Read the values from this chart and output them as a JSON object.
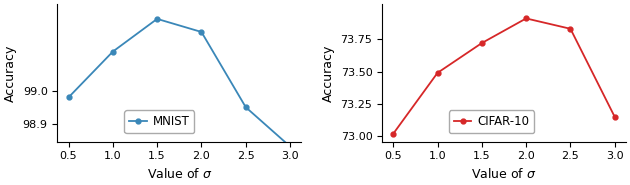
{
  "mnist": {
    "x": [
      0.5,
      1.0,
      1.5,
      2.0,
      2.5,
      3.0
    ],
    "y": [
      98.98,
      99.12,
      99.22,
      99.18,
      98.95,
      98.83
    ],
    "color": "#3a87b8",
    "label": "MNIST",
    "ylabel": "Accuracy",
    "ylim": [
      98.845,
      99.265
    ],
    "yticks": [
      98.9,
      99.0
    ]
  },
  "cifar": {
    "x": [
      0.5,
      1.0,
      1.5,
      2.0,
      2.5,
      3.0
    ],
    "y": [
      73.02,
      73.49,
      73.72,
      73.91,
      73.83,
      73.15
    ],
    "color": "#d62728",
    "label": "CIFAR-10",
    "ylabel": "Accuracy",
    "ylim": [
      72.96,
      74.02
    ],
    "yticks": [
      73.0,
      73.25,
      73.5,
      73.75
    ]
  },
  "xlabel": "Value of $\\sigma$",
  "xticks": [
    0.5,
    1.0,
    1.5,
    2.0,
    2.5,
    3.0
  ],
  "xticklabels": [
    "0.5",
    "1.0",
    "1.5",
    "2.0",
    "2.5",
    "3.0"
  ],
  "figsize": [
    6.3,
    1.85
  ],
  "dpi": 100
}
